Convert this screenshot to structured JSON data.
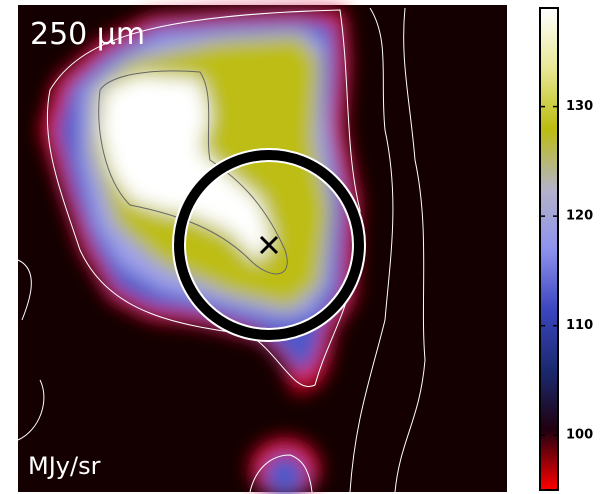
{
  "chart_data": {
    "type": "heatmap",
    "title": "250 μm",
    "unit_label": "MJy/sr",
    "colorbar": {
      "lim": [
        95,
        139
      ],
      "ticks": [
        100,
        110,
        120,
        130
      ],
      "colormap": [
        "#ff0000",
        "#200010",
        "#1a2a70",
        "#3c46c0",
        "#8e92ee",
        "#b4b4c8",
        "#bcbc10",
        "#e8e896",
        "#ffffff"
      ]
    }
  }
}
